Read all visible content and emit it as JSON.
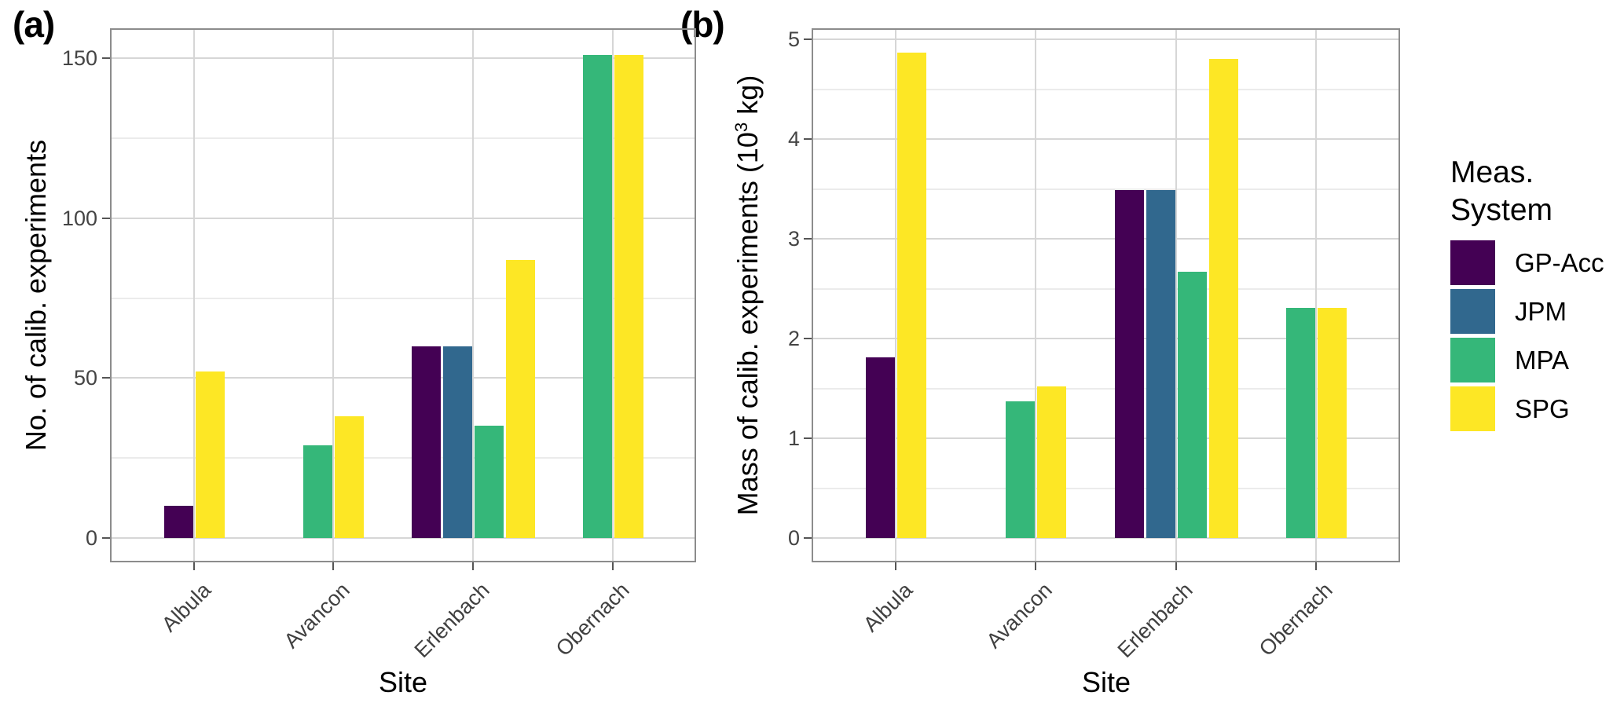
{
  "figure": {
    "panel_a_label": "(a)",
    "panel_b_label": "(b)"
  },
  "legend": {
    "title_lines": [
      "Meas.",
      "System"
    ],
    "items": [
      {
        "label": "GP-Acc",
        "color": "#440154"
      },
      {
        "label": "JPM",
        "color": "#31688E"
      },
      {
        "label": "MPA",
        "color": "#35B779"
      },
      {
        "label": "SPG",
        "color": "#FDE725"
      }
    ]
  },
  "chart_data": [
    {
      "id": "a",
      "type": "bar",
      "panel_label": "(a)",
      "xlabel": "Site",
      "ylabel_segments": [
        {
          "t": "No. of calib. experiments"
        }
      ],
      "categories": [
        "Albula",
        "Avancon",
        "Erlenbach",
        "Obernach"
      ],
      "series": [
        {
          "name": "GP-Acc",
          "color": "#440154",
          "values": [
            10,
            null,
            60,
            null
          ]
        },
        {
          "name": "JPM",
          "color": "#31688E",
          "values": [
            null,
            null,
            60,
            null
          ]
        },
        {
          "name": "MPA",
          "color": "#35B779",
          "values": [
            null,
            29,
            35,
            151
          ]
        },
        {
          "name": "SPG",
          "color": "#FDE725",
          "values": [
            52,
            38,
            87,
            151
          ]
        }
      ],
      "ylim": [
        0,
        158
      ],
      "yticks": [
        0,
        50,
        100,
        150
      ],
      "yminor": [
        25,
        75,
        125
      ],
      "grid": true,
      "legend_position": "right"
    },
    {
      "id": "b",
      "type": "bar",
      "panel_label": "(b)",
      "xlabel": "Site",
      "ylabel_segments": [
        {
          "t": "Mass of calib. experiments (10"
        },
        {
          "t": "3",
          "sup": true
        },
        {
          "t": " kg)"
        }
      ],
      "categories": [
        "Albula",
        "Avancon",
        "Erlenbach",
        "Obernach"
      ],
      "series": [
        {
          "name": "GP-Acc",
          "color": "#440154",
          "values": [
            1.81,
            null,
            3.49,
            null
          ]
        },
        {
          "name": "JPM",
          "color": "#31688E",
          "values": [
            null,
            null,
            3.49,
            null
          ]
        },
        {
          "name": "MPA",
          "color": "#35B779",
          "values": [
            null,
            1.37,
            2.67,
            2.31
          ]
        },
        {
          "name": "SPG",
          "color": "#FDE725",
          "values": [
            4.87,
            1.52,
            4.8,
            2.31
          ]
        }
      ],
      "ylim": [
        0,
        5.1
      ],
      "yticks": [
        0,
        1,
        2,
        3,
        4,
        5
      ],
      "yminor": [
        0.5,
        1.5,
        2.5,
        3.5,
        4.5
      ],
      "grid": true,
      "legend_position": "right"
    }
  ]
}
